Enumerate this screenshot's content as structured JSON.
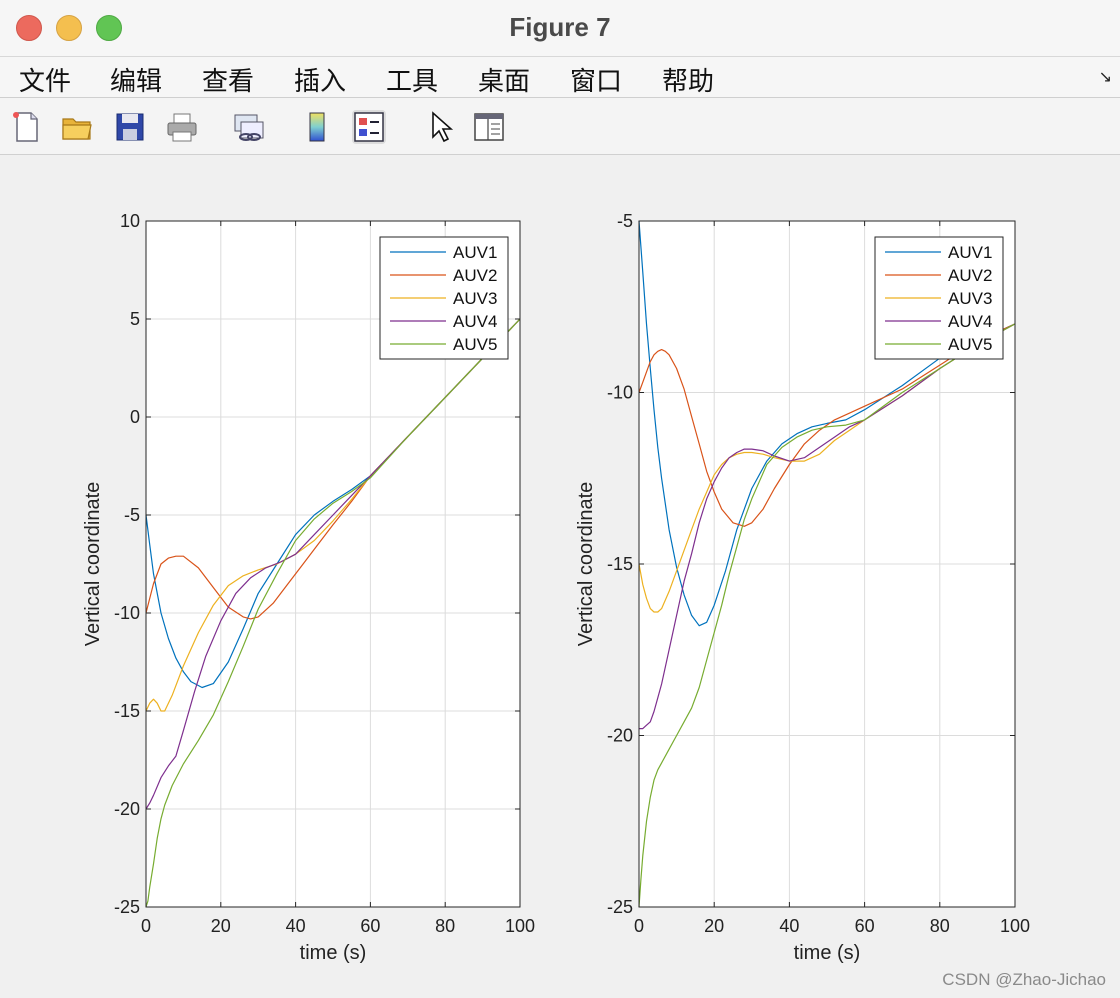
{
  "window": {
    "title": "Figure 7"
  },
  "menu": {
    "items": [
      "文件",
      "编辑",
      "查看",
      "插入",
      "工具",
      "桌面",
      "窗口",
      "帮助"
    ],
    "overflow_icon": "menu-overflow-arrow"
  },
  "toolbar": {
    "icons": [
      "new-file-icon",
      "open-folder-icon",
      "save-icon",
      "print-icon",
      "link-plot-icon",
      "colorbar-icon",
      "legend-icon",
      "pointer-icon",
      "property-inspector-icon"
    ]
  },
  "watermark": "CSDN @Zhao-Jichao",
  "colors": {
    "AUV1": "#0072bd",
    "AUV2": "#d95319",
    "AUV3": "#edb120",
    "AUV4": "#7e2f8e",
    "AUV5": "#77ac30"
  },
  "chart_data": [
    {
      "type": "line",
      "title": "",
      "xlabel": "time (s)",
      "ylabel": "Vertical coordinate",
      "xlim": [
        0,
        100
      ],
      "ylim": [
        -25,
        10
      ],
      "xticks": [
        0,
        20,
        40,
        60,
        80,
        100
      ],
      "yticks": [
        -25,
        -20,
        -15,
        -10,
        -5,
        0,
        5,
        10
      ],
      "grid": true,
      "legend_position": "top-right",
      "series": [
        {
          "name": "AUV1",
          "x": [
            0,
            1,
            2,
            4,
            6,
            8,
            10,
            12,
            15,
            18,
            22,
            26,
            30,
            35,
            40,
            45,
            50,
            55,
            60,
            70,
            80,
            90,
            100
          ],
          "y": [
            -5,
            -6.5,
            -8,
            -10,
            -11.3,
            -12.3,
            -13,
            -13.5,
            -13.8,
            -13.6,
            -12.5,
            -10.8,
            -9,
            -7.5,
            -6,
            -5,
            -4.3,
            -3.7,
            -3,
            -1,
            1,
            3,
            5
          ]
        },
        {
          "name": "AUV2",
          "x": [
            0,
            2,
            4,
            6,
            8,
            10,
            14,
            18,
            22,
            26,
            28,
            30,
            34,
            38,
            42,
            46,
            50,
            55,
            60,
            70,
            80,
            90,
            100
          ],
          "y": [
            -10,
            -8.5,
            -7.5,
            -7.2,
            -7.1,
            -7.1,
            -7.7,
            -8.7,
            -9.7,
            -10.2,
            -10.3,
            -10.2,
            -9.5,
            -8.5,
            -7.5,
            -6.5,
            -5.5,
            -4.3,
            -3,
            -1,
            1,
            3,
            5
          ]
        },
        {
          "name": "AUV3",
          "x": [
            0,
            1,
            2,
            3,
            4,
            5,
            7,
            10,
            14,
            18,
            22,
            26,
            30,
            35,
            40,
            45,
            50,
            55,
            60,
            70,
            80,
            90,
            100
          ],
          "y": [
            -15,
            -14.6,
            -14.4,
            -14.6,
            -15,
            -15,
            -14.2,
            -12.7,
            -11,
            -9.6,
            -8.6,
            -8.1,
            -7.8,
            -7.5,
            -7,
            -6.3,
            -5.3,
            -4.2,
            -3,
            -1,
            1,
            3,
            5
          ]
        },
        {
          "name": "AUV4",
          "x": [
            0,
            1,
            2,
            4,
            6,
            8,
            10,
            13,
            16,
            20,
            24,
            28,
            32,
            36,
            40,
            45,
            50,
            55,
            60,
            70,
            80,
            90,
            100
          ],
          "y": [
            -20,
            -19.7,
            -19.3,
            -18.4,
            -17.8,
            -17.3,
            -16,
            -14,
            -12.2,
            -10.4,
            -9,
            -8.2,
            -7.7,
            -7.4,
            -7,
            -6,
            -5,
            -4,
            -3,
            -1,
            1,
            3,
            5
          ]
        },
        {
          "name": "AUV5",
          "x": [
            0,
            0.5,
            1,
            2,
            3,
            4,
            5,
            7,
            10,
            14,
            18,
            22,
            26,
            30,
            35,
            40,
            45,
            50,
            55,
            60,
            70,
            80,
            90,
            100
          ],
          "y": [
            -25,
            -24.7,
            -24,
            -22.8,
            -21.5,
            -20.5,
            -19.8,
            -18.8,
            -17.7,
            -16.5,
            -15.2,
            -13.5,
            -11.7,
            -9.8,
            -8,
            -6.3,
            -5.2,
            -4.4,
            -3.8,
            -3.1,
            -1,
            1,
            3,
            5
          ]
        }
      ]
    },
    {
      "type": "line",
      "title": "",
      "xlabel": "time (s)",
      "ylabel": "Vertical coordinate",
      "xlim": [
        0,
        100
      ],
      "ylim": [
        -25,
        -5
      ],
      "xticks": [
        0,
        20,
        40,
        60,
        80,
        100
      ],
      "yticks": [
        -25,
        -20,
        -15,
        -10,
        -5
      ],
      "grid": true,
      "legend_position": "top-right",
      "series": [
        {
          "name": "AUV1",
          "x": [
            0,
            1,
            2,
            3,
            4,
            5,
            6,
            8,
            10,
            12,
            14,
            16,
            18,
            20,
            23,
            26,
            30,
            34,
            38,
            42,
            46,
            50,
            55,
            60,
            70,
            80,
            90,
            100
          ],
          "y": [
            -5,
            -6.5,
            -8,
            -9.3,
            -10.5,
            -11.6,
            -12.5,
            -14,
            -15.1,
            -15.9,
            -16.5,
            -16.8,
            -16.7,
            -16.2,
            -15.2,
            -14,
            -12.8,
            -12,
            -11.5,
            -11.2,
            -11,
            -10.9,
            -10.8,
            -10.5,
            -9.8,
            -9,
            -8.5,
            -8
          ]
        },
        {
          "name": "AUV2",
          "x": [
            0,
            1,
            2,
            3,
            4,
            5,
            6,
            7,
            8,
            10,
            12,
            14,
            16,
            18,
            20,
            22,
            25,
            28,
            30,
            33,
            36,
            40,
            44,
            48,
            52,
            56,
            60,
            70,
            80,
            90,
            100
          ],
          "y": [
            -10,
            -9.7,
            -9.4,
            -9.1,
            -8.9,
            -8.8,
            -8.75,
            -8.8,
            -8.9,
            -9.3,
            -9.9,
            -10.7,
            -11.5,
            -12.3,
            -12.9,
            -13.4,
            -13.8,
            -13.9,
            -13.8,
            -13.4,
            -12.8,
            -12.1,
            -11.5,
            -11.1,
            -10.8,
            -10.6,
            -10.4,
            -9.9,
            -9.2,
            -8.5,
            -8
          ]
        },
        {
          "name": "AUV3",
          "x": [
            0,
            1,
            2,
            3,
            4,
            5,
            6,
            8,
            10,
            12,
            14,
            16,
            18,
            20,
            22,
            24,
            26,
            28,
            30,
            33,
            36,
            40,
            44,
            48,
            52,
            56,
            60,
            70,
            80,
            90,
            100
          ],
          "y": [
            -15,
            -15.6,
            -16,
            -16.3,
            -16.4,
            -16.4,
            -16.3,
            -15.8,
            -15.2,
            -14.6,
            -14,
            -13.4,
            -12.9,
            -12.4,
            -12.1,
            -11.9,
            -11.8,
            -11.75,
            -11.75,
            -11.8,
            -11.9,
            -12,
            -12,
            -11.8,
            -11.4,
            -11.1,
            -10.8,
            -10.1,
            -9.3,
            -8.6,
            -8
          ]
        },
        {
          "name": "AUV4",
          "x": [
            0,
            1,
            2,
            3,
            4,
            5,
            6,
            8,
            10,
            12,
            14,
            16,
            18,
            20,
            22,
            24,
            26,
            28,
            30,
            33,
            36,
            40,
            44,
            48,
            52,
            56,
            60,
            70,
            80,
            90,
            100
          ],
          "y": [
            -19.8,
            -19.8,
            -19.7,
            -19.6,
            -19.3,
            -18.9,
            -18.5,
            -17.5,
            -16.5,
            -15.5,
            -14.7,
            -13.8,
            -13.1,
            -12.6,
            -12.2,
            -11.9,
            -11.75,
            -11.65,
            -11.65,
            -11.7,
            -11.85,
            -12,
            -11.9,
            -11.6,
            -11.3,
            -11,
            -10.8,
            -10.1,
            -9.3,
            -8.6,
            -8
          ]
        },
        {
          "name": "AUV5",
          "x": [
            0,
            0.5,
            1,
            2,
            3,
            4,
            5,
            6,
            8,
            10,
            12,
            14,
            16,
            18,
            20,
            22,
            24,
            26,
            28,
            30,
            34,
            38,
            42,
            46,
            50,
            55,
            60,
            70,
            80,
            90,
            100
          ],
          "y": [
            -25,
            -24.2,
            -23.5,
            -22.5,
            -21.8,
            -21.3,
            -21,
            -20.8,
            -20.4,
            -20,
            -19.6,
            -19.2,
            -18.6,
            -17.8,
            -17,
            -16.2,
            -15.3,
            -14.5,
            -13.7,
            -13.1,
            -12.1,
            -11.6,
            -11.3,
            -11.1,
            -11,
            -10.95,
            -10.8,
            -10,
            -9.3,
            -8.6,
            -8
          ]
        }
      ]
    }
  ]
}
